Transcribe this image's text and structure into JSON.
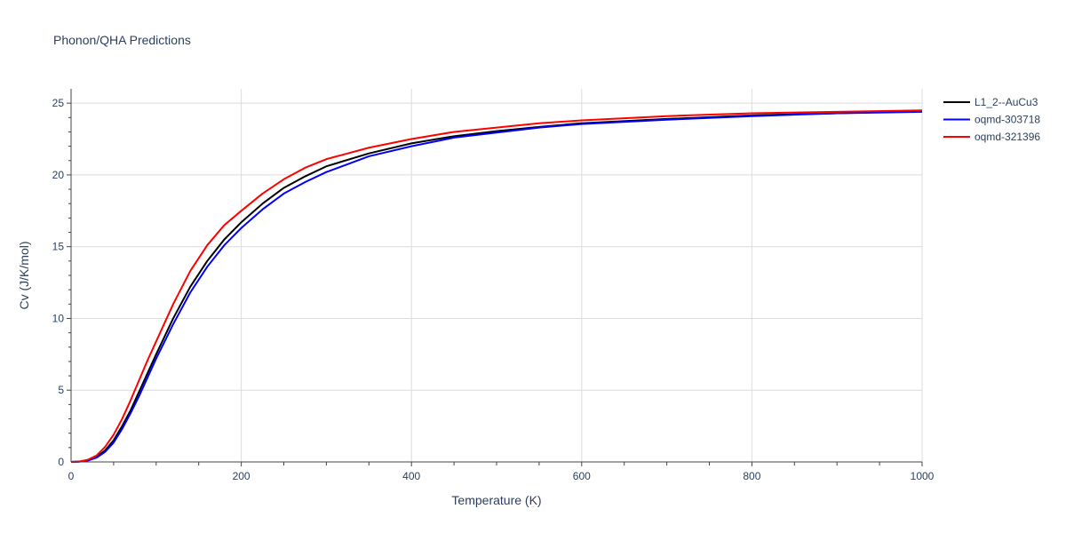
{
  "chart_data": {
    "type": "line",
    "title": "Phonon/QHA Predictions",
    "xlabel": "Temperature (K)",
    "ylabel": "Cv (J/K/mol)",
    "xlim": [
      0,
      1000
    ],
    "ylim": [
      0,
      26
    ],
    "xticks": [
      0,
      200,
      400,
      600,
      800,
      1000
    ],
    "yticks": [
      0,
      5,
      10,
      15,
      20,
      25
    ],
    "grid": true,
    "legend_position": "top-right",
    "series": [
      {
        "name": "L1_2--AuCu3",
        "color": "#000000",
        "x": [
          0,
          10,
          20,
          30,
          40,
          50,
          60,
          70,
          80,
          90,
          100,
          120,
          140,
          160,
          180,
          200,
          225,
          250,
          275,
          300,
          350,
          400,
          450,
          500,
          550,
          600,
          700,
          800,
          900,
          1000
        ],
        "y": [
          0,
          0.02,
          0.12,
          0.35,
          0.8,
          1.5,
          2.5,
          3.6,
          4.9,
          6.2,
          7.5,
          10.0,
          12.2,
          14.0,
          15.5,
          16.7,
          18.0,
          19.1,
          19.9,
          20.6,
          21.5,
          22.2,
          22.7,
          23.05,
          23.35,
          23.6,
          23.9,
          24.15,
          24.3,
          24.45
        ]
      },
      {
        "name": "oqmd-303718",
        "color": "#0000ff",
        "x": [
          0,
          10,
          20,
          30,
          40,
          50,
          60,
          70,
          80,
          90,
          100,
          120,
          140,
          160,
          180,
          200,
          225,
          250,
          275,
          300,
          350,
          400,
          450,
          500,
          550,
          600,
          700,
          800,
          900,
          1000
        ],
        "y": [
          0,
          0.02,
          0.1,
          0.3,
          0.7,
          1.35,
          2.3,
          3.4,
          4.6,
          5.9,
          7.2,
          9.6,
          11.8,
          13.6,
          15.1,
          16.3,
          17.6,
          18.7,
          19.5,
          20.2,
          21.3,
          22.0,
          22.6,
          22.95,
          23.3,
          23.55,
          23.85,
          24.1,
          24.3,
          24.4
        ]
      },
      {
        "name": "oqmd-321396",
        "color": "#ff0000",
        "x": [
          0,
          10,
          20,
          30,
          40,
          50,
          60,
          70,
          80,
          90,
          100,
          120,
          140,
          160,
          180,
          200,
          225,
          250,
          275,
          300,
          350,
          400,
          450,
          500,
          550,
          600,
          700,
          800,
          900,
          1000
        ],
        "y": [
          0,
          0.03,
          0.16,
          0.45,
          1.05,
          1.9,
          3.0,
          4.3,
          5.7,
          7.1,
          8.4,
          11.0,
          13.3,
          15.1,
          16.5,
          17.5,
          18.7,
          19.7,
          20.5,
          21.1,
          21.9,
          22.5,
          23.0,
          23.3,
          23.6,
          23.8,
          24.1,
          24.3,
          24.4,
          24.5
        ]
      }
    ]
  }
}
